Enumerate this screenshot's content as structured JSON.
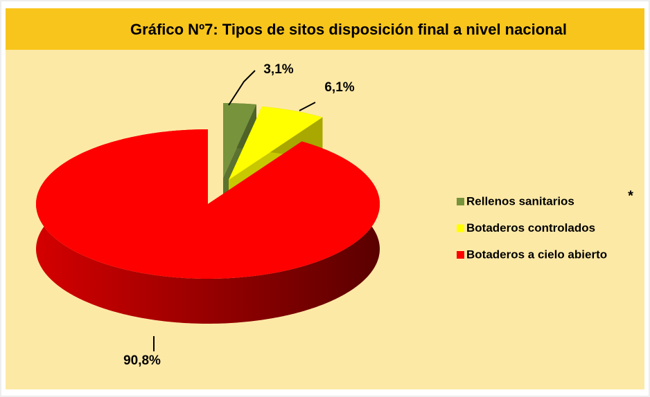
{
  "chart_data": {
    "type": "pie",
    "title": "Gráfico Nº7: Tipos de sitos disposición final a nivel nacional",
    "categories": [
      "Rellenos sanitarios",
      "Botaderos controlados",
      "Botaderos a cielo abierto"
    ],
    "values": [
      3.1,
      6.1,
      90.8
    ],
    "value_labels": [
      "3,1%",
      "6,1%",
      "90,8%"
    ],
    "colors": [
      "#77933c",
      "#ffff00",
      "#ff0000"
    ],
    "legend": "right",
    "annotation": "*"
  }
}
